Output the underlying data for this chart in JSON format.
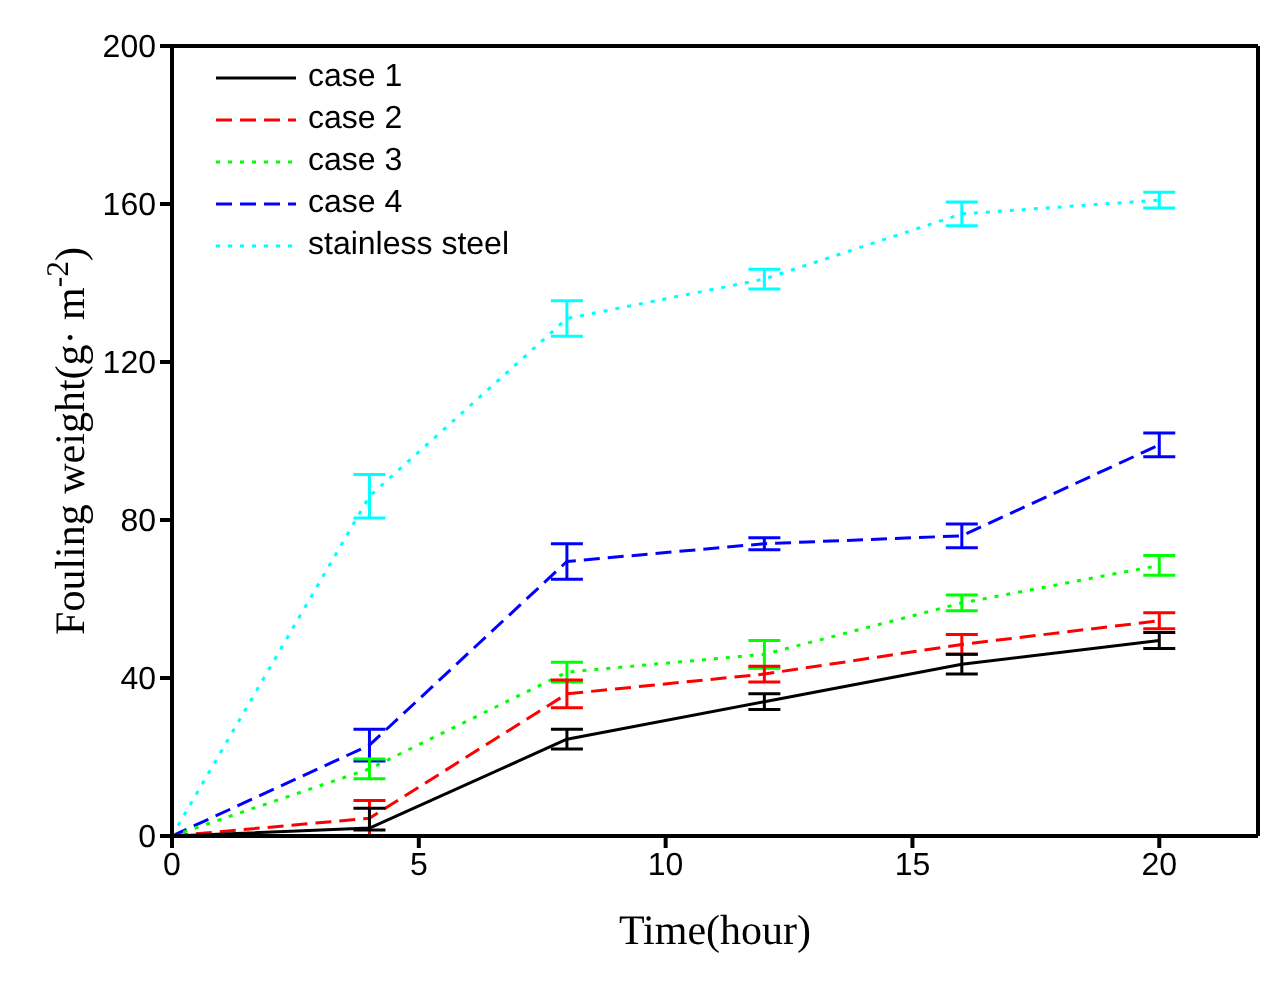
{
  "chart_data": {
    "type": "line",
    "xlabel": "Time(hour)",
    "ylabel": "Fouling weight(g· m$^{-2}$)",
    "x": [
      0,
      4,
      8,
      12,
      16,
      20
    ],
    "xlim": [
      0,
      22
    ],
    "xticks": [
      0,
      5,
      10,
      15,
      20
    ],
    "ylim": [
      0,
      200
    ],
    "yticks": [
      0,
      40,
      80,
      120,
      160,
      200
    ],
    "legend": "top left",
    "grid": false,
    "marker": "none",
    "series": [
      {
        "name": "case 1",
        "color": "#000000",
        "line_style": "solid",
        "values": [
          0,
          2,
          24.5,
          34,
          43.5,
          49.5
        ],
        "errors": [
          null,
          [
            1.5,
            7
          ],
          2.5,
          2,
          2.5,
          2
        ]
      },
      {
        "name": "case 2",
        "color": "#ff0000",
        "line_style": "dashed",
        "values": [
          0,
          4.5,
          36,
          41,
          48.5,
          54.5
        ],
        "errors": [
          null,
          4.5,
          3.5,
          2,
          2.5,
          2
        ]
      },
      {
        "name": "case 3",
        "color": "#00ff00",
        "line_style": "dotted",
        "values": [
          0,
          17,
          41.5,
          46,
          59,
          68.5
        ],
        "errors": [
          null,
          2.5,
          2.5,
          3.5,
          2,
          2.5
        ]
      },
      {
        "name": "case 4",
        "color": "#0000ff",
        "line_style": "dashed",
        "values": [
          0,
          23,
          69.5,
          74,
          76,
          99
        ],
        "errors": [
          null,
          4,
          4.5,
          1.5,
          3,
          3
        ]
      },
      {
        "name": "stainless steel",
        "color": "#00ffff",
        "line_style": "dotted",
        "values": [
          0,
          86,
          131,
          141,
          157.5,
          161
        ],
        "errors": [
          null,
          5.5,
          4.5,
          2.5,
          3,
          2
        ]
      }
    ]
  }
}
